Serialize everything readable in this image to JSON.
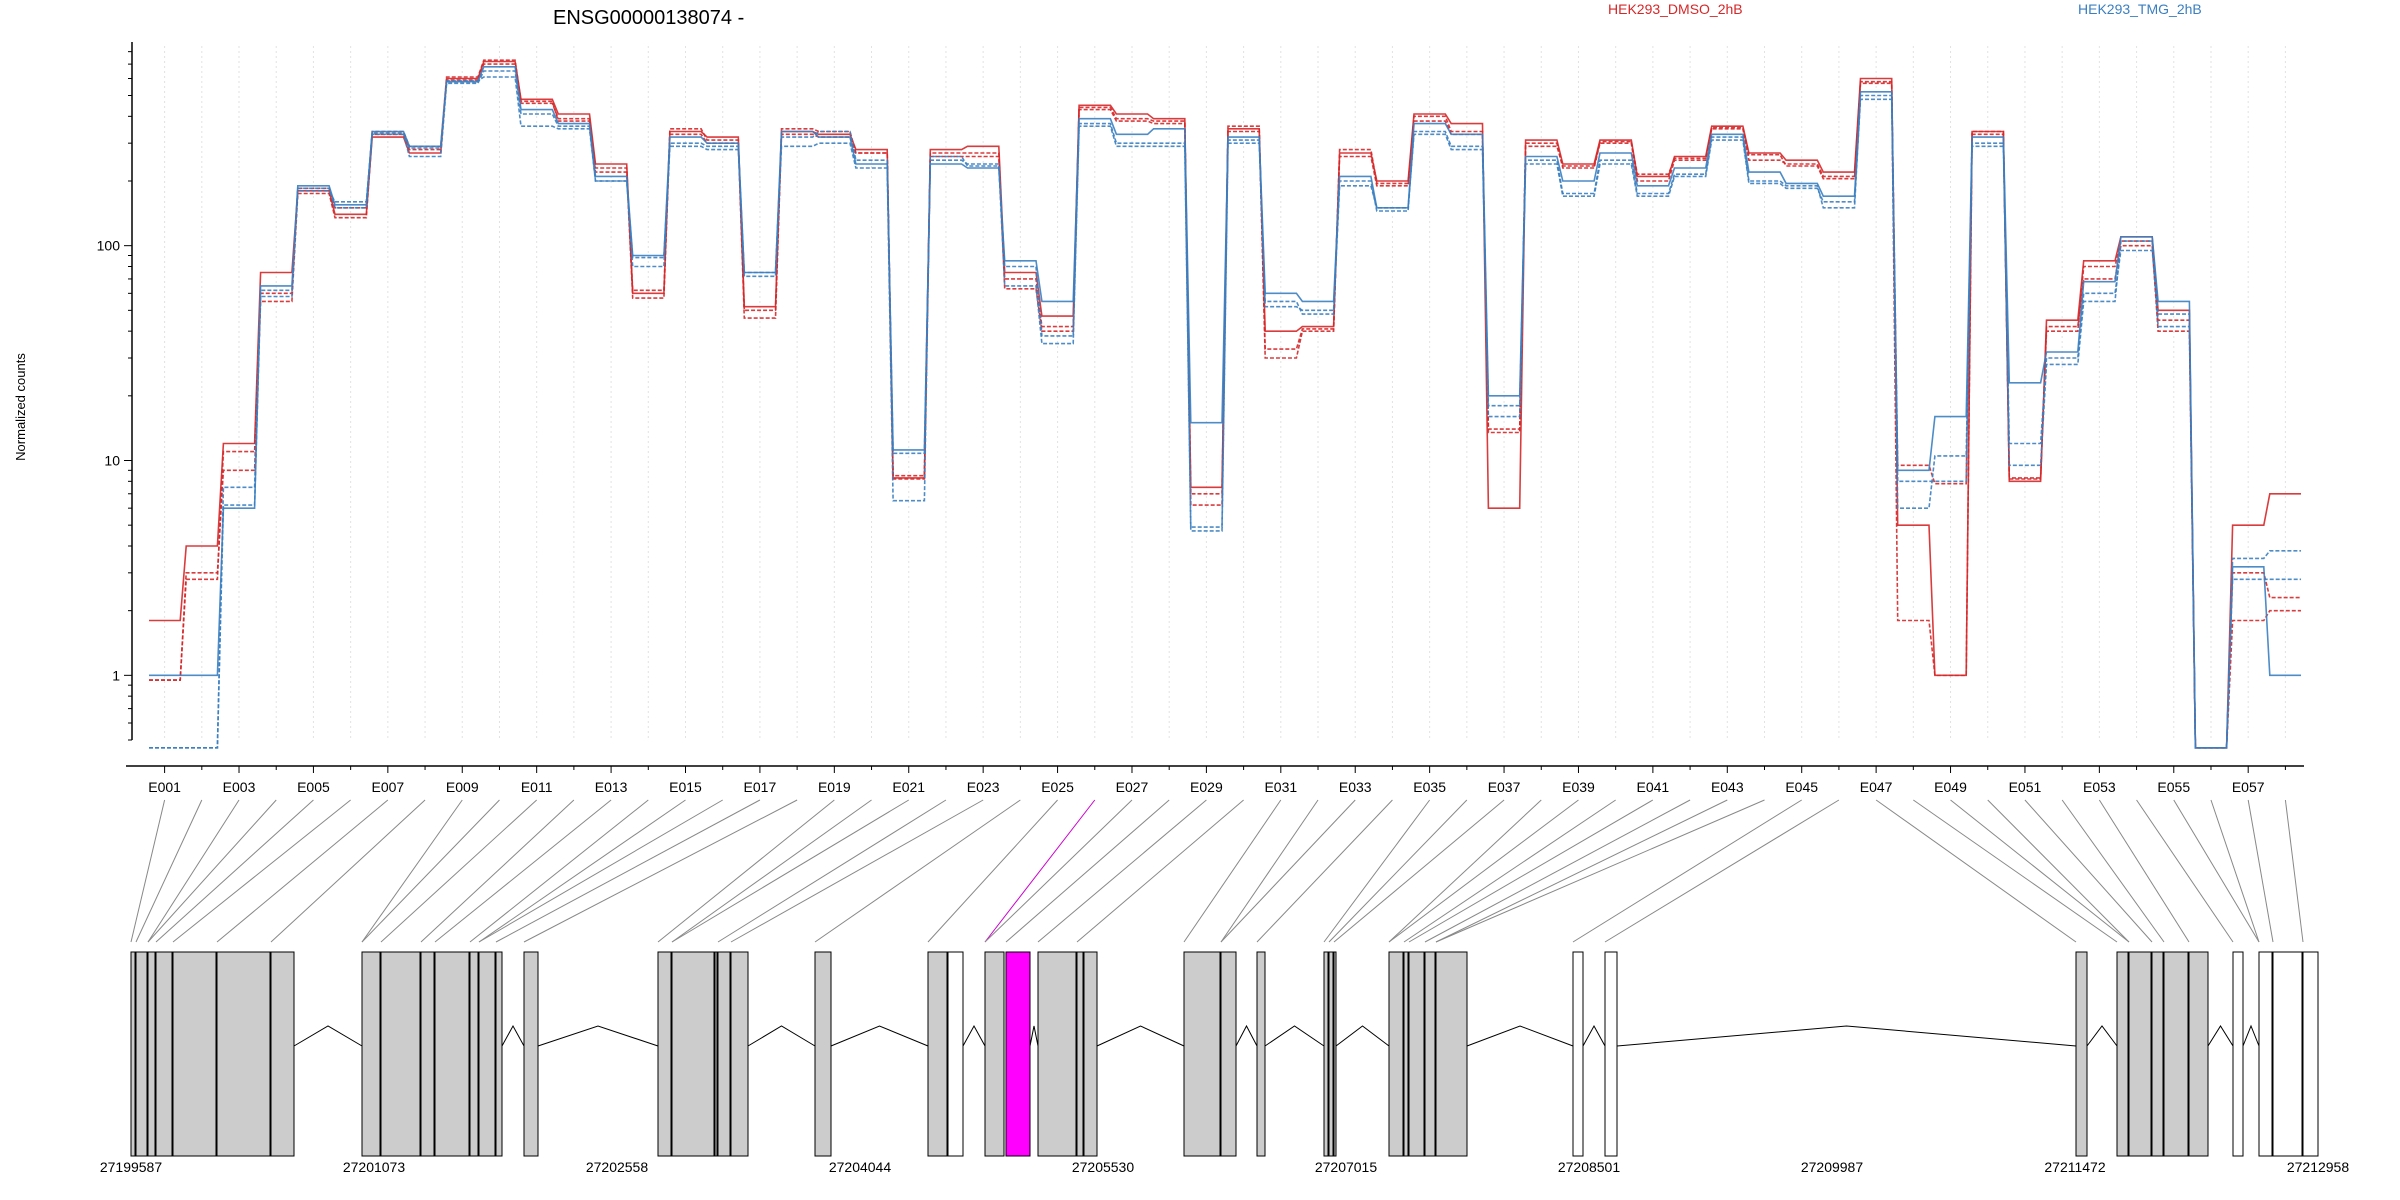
{
  "chart_data": {
    "type": "line",
    "title": "ENSG00000138074 -",
    "ylabel": "Normalized counts",
    "yscale": "log",
    "ylim": [
      0.5,
      850
    ],
    "yticks": [
      1,
      10,
      100
    ],
    "ytick_labels": [
      "1",
      "10",
      "100"
    ],
    "grid": "vertical dotted",
    "legend": [
      {
        "name": "HEK293_DMSO_2hB",
        "color": "#d62728"
      },
      {
        "name": "HEK293_TMG_2hB",
        "color": "#3a7fc1"
      }
    ],
    "legend_placement": "top-right",
    "exons": [
      "E001",
      "E002",
      "E003",
      "E004",
      "E005",
      "E006",
      "E007",
      "E008",
      "E009",
      "E010",
      "E011",
      "E012",
      "E013",
      "E014",
      "E015",
      "E016",
      "E017",
      "E018",
      "E019",
      "E020",
      "E021",
      "E022",
      "E023",
      "E024",
      "E025",
      "E026",
      "E027",
      "E028",
      "E029",
      "E030",
      "E031",
      "E032",
      "E033",
      "E034",
      "E035",
      "E036",
      "E037",
      "E038",
      "E039",
      "E040",
      "E041",
      "E042",
      "E043",
      "E044",
      "E045",
      "E046",
      "E047",
      "E048",
      "E049",
      "E050",
      "E051",
      "E052",
      "E053",
      "E054",
      "E055",
      "E056",
      "E057",
      "E058"
    ],
    "exon_tick_labels": [
      "E001",
      "E003",
      "E005",
      "E007",
      "E009",
      "E011",
      "E013",
      "E015",
      "E017",
      "E019",
      "E021",
      "E023",
      "E025",
      "E027",
      "E029",
      "E031",
      "E033",
      "E035",
      "E037",
      "E039",
      "E041",
      "E043",
      "E045",
      "E047",
      "E049",
      "E051",
      "E053",
      "E055",
      "E057"
    ],
    "highlight_exon": "E026",
    "series": [
      {
        "name": "HEK293_DMSO_2hB",
        "color": "#d62728",
        "values": [
          1.8,
          4.0,
          12,
          75,
          180,
          140,
          320,
          270,
          600,
          720,
          480,
          410,
          240,
          60,
          340,
          320,
          52,
          340,
          330,
          280,
          8.3,
          280,
          290,
          75,
          47,
          450,
          410,
          390,
          7.5,
          350,
          40,
          42,
          270,
          200,
          410,
          370,
          6.0,
          310,
          240,
          310,
          210,
          260,
          360,
          270,
          250,
          220,
          600,
          5.0,
          1.0,
          340,
          8.0,
          45,
          85,
          110,
          50,
          0.46,
          5.0,
          7.0
        ]
      },
      {
        "name": "HEK293_DMSO_2hB",
        "color": "#d62728",
        "values": [
          0.95,
          3.0,
          9.0,
          55,
          175,
          135,
          330,
          280,
          590,
          700,
          460,
          390,
          220,
          57,
          330,
          300,
          46,
          330,
          320,
          270,
          8.5,
          270,
          270,
          63,
          40,
          430,
          380,
          370,
          6.2,
          340,
          33,
          41,
          260,
          190,
          400,
          340,
          14,
          300,
          230,
          300,
          200,
          250,
          350,
          250,
          240,
          210,
          580,
          1.8,
          1.0,
          330,
          8.3,
          40,
          80,
          105,
          45,
          0.46,
          1.8,
          2.0
        ]
      },
      {
        "name": "HEK293_DMSO_2hB",
        "color": "#d62728",
        "values": [
          0.95,
          2.8,
          11,
          60,
          185,
          150,
          340,
          290,
          610,
          730,
          470,
          380,
          230,
          62,
          350,
          310,
          50,
          350,
          340,
          270,
          8.2,
          260,
          260,
          70,
          42,
          440,
          390,
          380,
          7.0,
          360,
          30,
          40,
          280,
          195,
          380,
          330,
          13.5,
          290,
          235,
          305,
          215,
          255,
          355,
          265,
          235,
          205,
          570,
          9.5,
          7.8,
          340,
          8.2,
          42,
          70,
          100,
          40,
          0.46,
          3.0,
          2.3
        ]
      },
      {
        "name": "HEK293_TMG_2hB",
        "color": "#3a7fc1",
        "values": [
          1.0,
          1.0,
          6.0,
          65,
          190,
          155,
          340,
          290,
          580,
          680,
          430,
          370,
          210,
          90,
          320,
          300,
          75,
          340,
          320,
          240,
          11.2,
          240,
          230,
          85,
          55,
          390,
          330,
          350,
          15,
          320,
          60,
          55,
          210,
          150,
          370,
          330,
          20,
          260,
          200,
          270,
          190,
          230,
          330,
          220,
          195,
          170,
          520,
          9.0,
          16,
          320,
          23,
          32,
          68,
          110,
          55,
          0.46,
          3.2,
          1.0
        ]
      },
      {
        "name": "HEK293_TMG_2hB",
        "color": "#3a7fc1",
        "values": [
          0.46,
          0.46,
          6.2,
          58,
          185,
          150,
          330,
          260,
          570,
          650,
          410,
          360,
          200,
          88,
          300,
          290,
          75,
          320,
          340,
          250,
          10.8,
          250,
          240,
          80,
          38,
          370,
          300,
          300,
          4.7,
          310,
          52,
          50,
          200,
          145,
          340,
          290,
          18,
          250,
          175,
          250,
          175,
          215,
          320,
          200,
          190,
          150,
          500,
          8.0,
          8.0,
          300,
          9.5,
          28,
          55,
          105,
          42,
          0.46,
          3.5,
          3.8
        ]
      },
      {
        "name": "HEK293_TMG_2hB",
        "color": "#3a7fc1",
        "values": [
          0.46,
          0.46,
          7.5,
          62,
          180,
          160,
          335,
          285,
          585,
          610,
          360,
          350,
          200,
          80,
          290,
          280,
          72,
          290,
          300,
          230,
          6.5,
          260,
          235,
          65,
          35,
          360,
          290,
          290,
          4.9,
          300,
          55,
          48,
          190,
          150,
          330,
          280,
          16,
          240,
          170,
          240,
          170,
          210,
          310,
          195,
          185,
          160,
          480,
          6.0,
          10.5,
          290,
          12,
          30,
          60,
          95,
          48,
          0.46,
          2.8,
          2.8
        ]
      }
    ]
  },
  "gene_model": {
    "coordinates": [
      "27199587",
      "27201073",
      "27202558",
      "27204044",
      "27205530",
      "27207015",
      "27208501",
      "27209987",
      "27211472",
      "27212958"
    ]
  }
}
